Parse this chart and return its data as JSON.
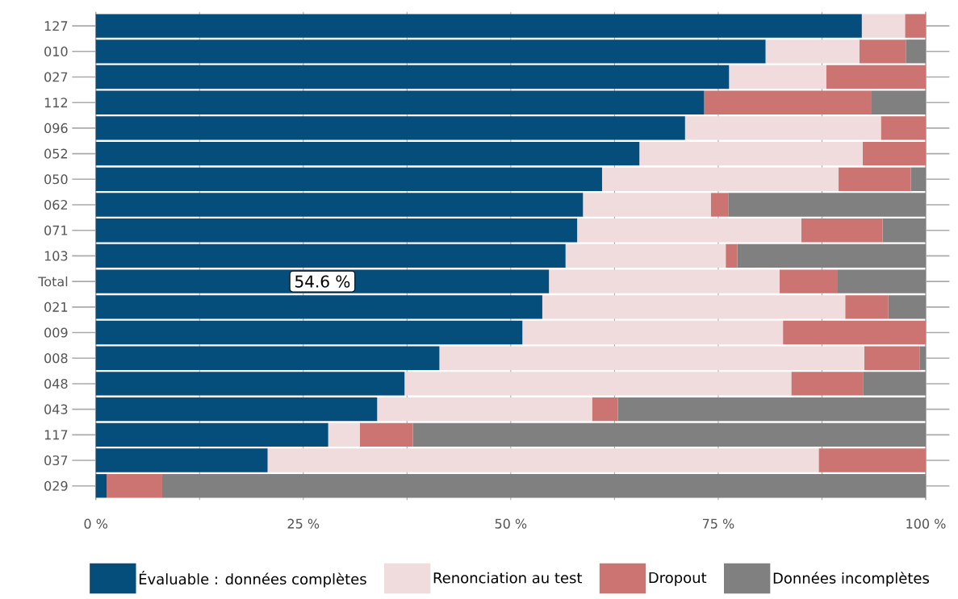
{
  "chart_data": {
    "type": "bar",
    "orientation": "horizontal",
    "stacked": true,
    "categories": [
      "127",
      "010",
      "027",
      "112",
      "096",
      "052",
      "050",
      "062",
      "071",
      "103",
      "Total",
      "021",
      "009",
      "008",
      "048",
      "043",
      "117",
      "037",
      "029"
    ],
    "series": [
      {
        "name": "Évaluable : données complètes",
        "color": "#054d7b",
        "values": [
          92.3,
          80.7,
          76.3,
          73.3,
          71.0,
          65.5,
          61.0,
          58.7,
          58.0,
          56.6,
          54.6,
          53.8,
          51.4,
          41.4,
          37.2,
          33.9,
          28.0,
          20.7,
          1.3
        ],
        "value_labels": [
          null,
          null,
          null,
          null,
          null,
          null,
          null,
          null,
          null,
          null,
          "54.6 %",
          null,
          null,
          null,
          null,
          null,
          null,
          null,
          null
        ]
      },
      {
        "name": "Renonciation au test",
        "color": "#f0dcdc",
        "values": [
          5.2,
          11.3,
          11.7,
          0,
          23.6,
          26.9,
          28.5,
          15.4,
          27.0,
          19.3,
          27.8,
          36.5,
          31.4,
          51.2,
          46.6,
          25.9,
          3.8,
          66.4,
          0
        ]
      },
      {
        "name": "Dropout",
        "color": "#cc7472",
        "values": [
          2.5,
          5.6,
          12.0,
          20.1,
          5.4,
          7.6,
          8.7,
          2.1,
          9.8,
          1.4,
          7.0,
          5.2,
          17.2,
          6.7,
          8.7,
          3.1,
          6.4,
          12.9,
          6.7
        ]
      },
      {
        "name": "Données incomplètes",
        "color": "#808080",
        "values": [
          0,
          2.4,
          0,
          6.6,
          0,
          0,
          1.8,
          23.8,
          5.2,
          22.7,
          10.6,
          4.5,
          0,
          0.7,
          7.5,
          37.1,
          61.8,
          0,
          92.0
        ]
      }
    ],
    "xlim": [
      0,
      100
    ],
    "xticks": [
      {
        "value": 0,
        "label": "0 %"
      },
      {
        "value": 12.5,
        "label": null
      },
      {
        "value": 25,
        "label": "25 %"
      },
      {
        "value": 37.5,
        "label": null
      },
      {
        "value": 50,
        "label": "50 %"
      },
      {
        "value": 62.5,
        "label": null
      },
      {
        "value": 75,
        "label": "75 %"
      },
      {
        "value": 87.5,
        "label": null
      },
      {
        "value": 100,
        "label": "100 %"
      }
    ],
    "grid": "x",
    "legend": "bottom"
  }
}
